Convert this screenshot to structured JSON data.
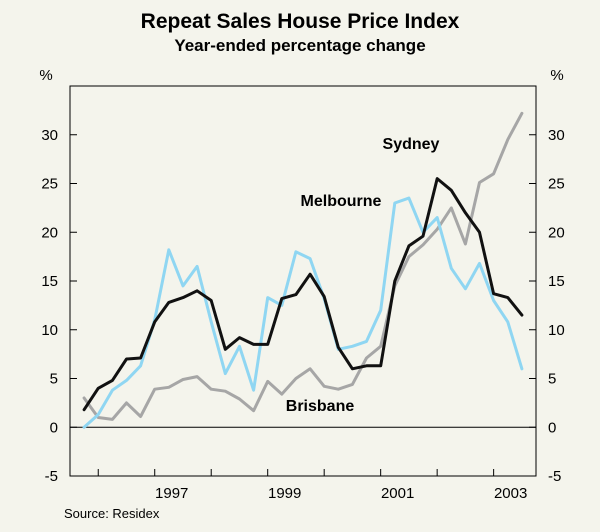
{
  "chart_data": {
    "type": "line",
    "title": "Repeat Sales House Price Index",
    "subtitle": "Year-ended percentage change",
    "ylabel_left": "%",
    "ylabel_right": "%",
    "ylim": [
      -5,
      35
    ],
    "yticks": [
      -5,
      0,
      5,
      10,
      15,
      20,
      25,
      30
    ],
    "ytick_labels": [
      "-5",
      "0",
      "5",
      "10",
      "15",
      "20",
      "25",
      "30"
    ],
    "xlim": [
      1995.5,
      2003.75
    ],
    "xtick_labels": [
      {
        "label": "1997",
        "x": 1997.0
      },
      {
        "label": "1999",
        "x": 1999.0
      },
      {
        "label": "2001",
        "x": 2001.0
      },
      {
        "label": "2003",
        "x": 2003.0
      }
    ],
    "year_ticks": [
      1996,
      1997,
      1998,
      1999,
      2000,
      2001,
      2002,
      2003
    ],
    "source": "Source: Residex",
    "series": [
      {
        "name": "Sydney",
        "color": "#111111",
        "x": [
          1995.75,
          1996,
          1996.25,
          1996.5,
          1996.75,
          1997,
          1997.25,
          1997.5,
          1997.75,
          1998,
          1998.25,
          1998.5,
          1998.75,
          1999,
          1999.25,
          1999.5,
          1999.75,
          2000,
          2000.25,
          2000.5,
          2000.75,
          2001,
          2001.25,
          2001.5,
          2001.75,
          2002,
          2002.25,
          2002.5,
          2002.75,
          2003,
          2003.25,
          2003.5
        ],
        "values": [
          1.8,
          4.0,
          4.8,
          7.0,
          7.1,
          10.8,
          12.8,
          13.3,
          14.0,
          13.0,
          8.0,
          9.2,
          8.5,
          8.5,
          13.2,
          13.6,
          15.7,
          13.4,
          8.2,
          6.0,
          6.3,
          6.3,
          15.0,
          18.6,
          19.6,
          25.5,
          24.3,
          22.0,
          20.0,
          13.7,
          13.3,
          11.5
        ]
      },
      {
        "name": "Melbourne",
        "color": "#8fd6f2",
        "x": [
          1995.75,
          1996,
          1996.25,
          1996.5,
          1996.75,
          1997,
          1997.25,
          1997.5,
          1997.75,
          1998,
          1998.25,
          1998.5,
          1998.75,
          1999,
          1999.25,
          1999.5,
          1999.75,
          2000,
          2000.25,
          2000.5,
          2000.75,
          2001,
          2001.25,
          2001.5,
          2001.75,
          2002,
          2002.25,
          2002.5,
          2002.75,
          2003,
          2003.25,
          2003.5
        ],
        "values": [
          0.0,
          1.3,
          3.8,
          4.8,
          6.3,
          11.0,
          18.2,
          14.5,
          16.5,
          10.8,
          5.5,
          8.3,
          3.8,
          13.3,
          12.5,
          18.0,
          17.3,
          13.2,
          8.0,
          8.3,
          8.8,
          12.0,
          23.0,
          23.5,
          20.0,
          21.5,
          16.3,
          14.2,
          16.8,
          13.0,
          10.8,
          6.0
        ]
      },
      {
        "name": "Brisbane",
        "color": "#a6a6a6",
        "x": [
          1995.75,
          1996,
          1996.25,
          1996.5,
          1996.75,
          1997,
          1997.25,
          1997.5,
          1997.75,
          1998,
          1998.25,
          1998.5,
          1998.75,
          1999,
          1999.25,
          1999.5,
          1999.75,
          2000,
          2000.25,
          2000.5,
          2000.75,
          2001,
          2001.25,
          2001.5,
          2001.75,
          2002,
          2002.25,
          2002.5,
          2002.75,
          2003,
          2003.25,
          2003.5
        ],
        "values": [
          3.0,
          1.0,
          0.8,
          2.5,
          1.1,
          3.9,
          4.1,
          4.9,
          5.2,
          3.9,
          3.7,
          2.9,
          1.7,
          4.7,
          3.4,
          5.0,
          6.0,
          4.2,
          3.9,
          4.4,
          7.1,
          8.3,
          14.5,
          17.5,
          18.7,
          20.3,
          22.5,
          18.8,
          25.1,
          26.0,
          29.5,
          32.2
        ]
      }
    ],
    "annotations": [
      {
        "text": "Sydney",
        "series": "Sydney"
      },
      {
        "text": "Melbourne",
        "series": "Melbourne"
      },
      {
        "text": "Brisbane",
        "series": "Brisbane"
      }
    ]
  }
}
